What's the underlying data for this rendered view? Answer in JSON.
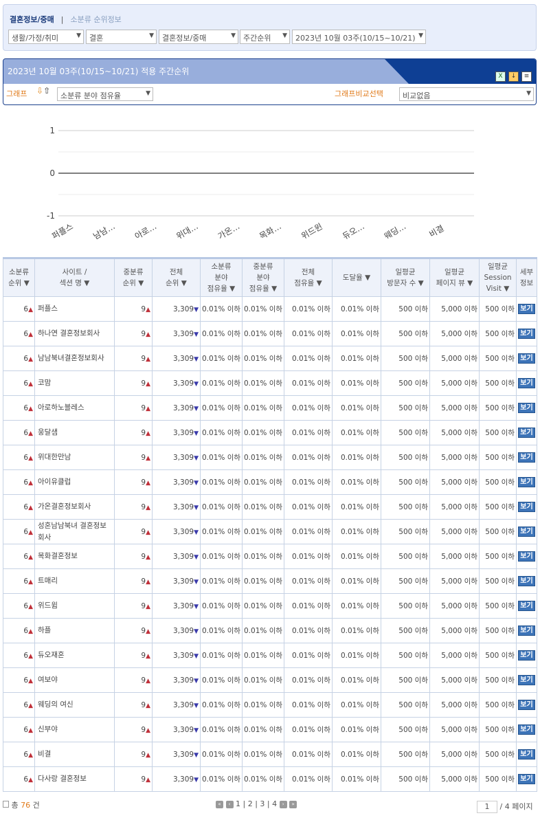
{
  "breadcrumb": {
    "current": "결혼정보/중매",
    "link": "소분류 순위정보",
    "sep": "|"
  },
  "filters": [
    "생활/가정/취미",
    "결혼",
    "결혼정보/중매",
    "주간순위",
    "2023년 10월 03주(10/15~10/21)"
  ],
  "panel": {
    "title": "2023년 10월 03주(10/15~10/21) 적용 주간순위",
    "graph_label": "그래프",
    "graph_select": "소분류 분야 점유율",
    "compare_label": "그래프비교선택",
    "compare_select": "비교없음",
    "icons": [
      "excel-icon",
      "download-icon",
      "print-icon"
    ]
  },
  "chart_data": {
    "type": "line",
    "categories": [
      "퍼플스",
      "남남…",
      "아로…",
      "위대…",
      "가온…",
      "목화…",
      "위드윈",
      "듀오…",
      "웨딩…",
      "비결"
    ],
    "series": [
      {
        "values": [
          0,
          0,
          0,
          0,
          0,
          0,
          0,
          0,
          0,
          0
        ]
      }
    ],
    "ylim": [
      -1,
      1
    ],
    "yticks": [
      "1",
      "0",
      "-1"
    ],
    "grid": true
  },
  "table": {
    "headers": [
      "소분류\n순위 ▼",
      "사이트 /\n섹션 명 ▼",
      "중분류\n순위 ▼",
      "전체\n순위 ▼",
      "소분류\n분야\n점유율 ▼",
      "중분류\n분야\n점유율 ▼",
      "전체\n점유율 ▼",
      "도달율 ▼",
      "일평균\n방문자 수 ▼",
      "일평균\n페이지 뷰 ▼",
      "일평균\nSession\nVisit ▼",
      "세부\n정보"
    ],
    "row_values": {
      "small_rank": "6",
      "mid_rank": "9",
      "total_rank": "3,309",
      "small_share": "0.01% 이하",
      "mid_share": "0.01% 이하",
      "total_share": "0.01% 이하",
      "reach": "0.01% 이하",
      "visitors": "500 이하",
      "pageviews": "5,000 이하",
      "session": "500 이하",
      "button": "보기"
    },
    "sites": [
      "퍼플스",
      "하나연 결혼정보회사",
      "남남북녀결혼정보회사",
      "코맘",
      "아로하노블레스",
      "웅달샘",
      "위대한만남",
      "아이유클럽",
      "가온결혼정보회사",
      "성혼남남북녀 결혼정보회사",
      "목화결혼정보",
      "트매리",
      "위드윔",
      "하플",
      "듀오재혼",
      "여보야",
      "웨딩의 여신",
      "신부야",
      "비결",
      "다사랑 결혼정보"
    ]
  },
  "footer": {
    "total_prefix": "총",
    "total": "76",
    "total_suffix": "건",
    "pages": [
      "1",
      "2",
      "3",
      "4"
    ],
    "page_input": "1",
    "page_total": "/ 4 페이지"
  },
  "colors": {
    "accent": "#0e3f94",
    "orange": "#e07a1a",
    "up": "#c0303a",
    "down": "#3a3aaa"
  }
}
